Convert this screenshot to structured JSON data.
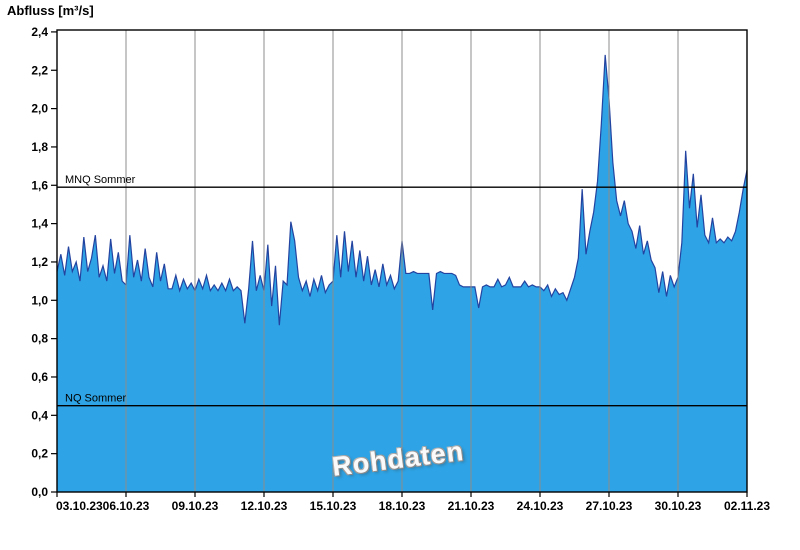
{
  "chart": {
    "title": "Abfluss [m³/s]",
    "watermark": "Rohdaten",
    "colors": {
      "background": "#ffffff",
      "area_fill": "#2ea4e6",
      "line": "#2343a0",
      "grid": "#8c8c8c",
      "reference_line": "#000000",
      "border": "#000000",
      "text": "#000000"
    }
  },
  "chart_data": {
    "type": "area",
    "title": "Abfluss [m³/s]",
    "xlabel": "",
    "ylabel": "Abfluss [m³/s]",
    "ylim": [
      0,
      2.41
    ],
    "x_span_days": 30,
    "grid": "vertical-only",
    "legend": "none",
    "y_tick_values": [
      0,
      0.2,
      0.4,
      0.6,
      0.8,
      1.0,
      1.2,
      1.4,
      1.6,
      1.8,
      2.0,
      2.2,
      2.4
    ],
    "y_tick_labels": [
      "0,0",
      "0,2",
      "0,4",
      "0,6",
      "0,8",
      "1,0",
      "1,2",
      "1,4",
      "1,6",
      "1,8",
      "2,0",
      "2,2",
      "2,4"
    ],
    "x_ticks": [
      {
        "day": 0,
        "label": "03.10.23"
      },
      {
        "day": 3,
        "label": "06.10.23"
      },
      {
        "day": 6,
        "label": "09.10.23"
      },
      {
        "day": 9,
        "label": "12.10.23"
      },
      {
        "day": 12,
        "label": "15.10.23"
      },
      {
        "day": 15,
        "label": "18.10.23"
      },
      {
        "day": 18,
        "label": "21.10.23"
      },
      {
        "day": 21,
        "label": "24.10.23"
      },
      {
        "day": 24,
        "label": "27.10.23"
      },
      {
        "day": 27,
        "label": "30.10.23"
      },
      {
        "day": 30,
        "label": "02.11.23"
      }
    ],
    "reference_lines": [
      {
        "label": "MNQ Sommer",
        "value": 1.59
      },
      {
        "label": "NQ Sommer",
        "value": 0.45
      }
    ],
    "series": [
      {
        "name": "Rohdaten",
        "start": "03.10.23",
        "end": "02.11.23",
        "interval_hours": 4,
        "unit": "m³/s",
        "values": [
          1.15,
          1.24,
          1.13,
          1.28,
          1.15,
          1.2,
          1.1,
          1.33,
          1.15,
          1.22,
          1.34,
          1.12,
          1.18,
          1.1,
          1.32,
          1.14,
          1.25,
          1.1,
          1.08,
          1.34,
          1.12,
          1.21,
          1.1,
          1.27,
          1.12,
          1.07,
          1.25,
          1.1,
          1.19,
          1.06,
          1.06,
          1.13,
          1.05,
          1.11,
          1.06,
          1.09,
          1.05,
          1.11,
          1.06,
          1.13,
          1.05,
          1.08,
          1.05,
          1.09,
          1.05,
          1.11,
          1.05,
          1.07,
          1.05,
          0.88,
          1.06,
          1.31,
          1.05,
          1.13,
          1.05,
          1.29,
          0.97,
          1.18,
          0.87,
          1.1,
          1.08,
          1.41,
          1.31,
          1.12,
          1.05,
          1.1,
          1.02,
          1.11,
          1.05,
          1.13,
          1.04,
          1.08,
          1.1,
          1.34,
          1.12,
          1.36,
          1.15,
          1.31,
          1.12,
          1.26,
          1.1,
          1.23,
          1.08,
          1.16,
          1.07,
          1.19,
          1.08,
          1.13,
          1.06,
          1.1,
          1.31,
          1.14,
          1.14,
          1.15,
          1.14,
          1.14,
          1.14,
          1.14,
          0.95,
          1.14,
          1.15,
          1.14,
          1.14,
          1.14,
          1.13,
          1.08,
          1.07,
          1.07,
          1.07,
          1.07,
          0.96,
          1.07,
          1.08,
          1.07,
          1.07,
          1.11,
          1.07,
          1.08,
          1.12,
          1.07,
          1.07,
          1.07,
          1.1,
          1.07,
          1.08,
          1.07,
          1.07,
          1.05,
          1.08,
          1.02,
          1.06,
          1.03,
          1.04,
          1.0,
          1.06,
          1.12,
          1.22,
          1.58,
          1.24,
          1.36,
          1.46,
          1.62,
          1.92,
          2.28,
          2.05,
          1.72,
          1.52,
          1.44,
          1.52,
          1.4,
          1.36,
          1.27,
          1.39,
          1.24,
          1.31,
          1.21,
          1.17,
          1.04,
          1.15,
          1.02,
          1.13,
          1.07,
          1.12,
          1.3,
          1.78,
          1.48,
          1.66,
          1.38,
          1.55,
          1.34,
          1.3,
          1.43,
          1.3,
          1.32,
          1.3,
          1.33,
          1.31,
          1.36,
          1.46,
          1.58,
          1.68
        ]
      }
    ]
  }
}
